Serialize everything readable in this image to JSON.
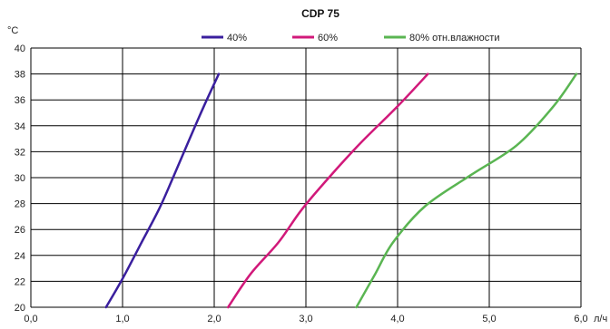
{
  "chart_data": {
    "type": "line",
    "title": "CDP 75",
    "ylabel": "°C",
    "x_axis_unit": "л/ч",
    "xlim": [
      0,
      6.0
    ],
    "ylim": [
      20,
      40
    ],
    "x_ticks": [
      "0,0",
      "1,0",
      "2,0",
      "3,0",
      "4,0",
      "5,0",
      "6,0"
    ],
    "y_ticks": [
      "20",
      "22",
      "24",
      "26",
      "28",
      "30",
      "32",
      "34",
      "36",
      "38",
      "40"
    ],
    "grid": true,
    "legend_position": "top",
    "series": [
      {
        "name": "40%",
        "color": "#3a1f9e",
        "points": [
          [
            0.82,
            20
          ],
          [
            1.0,
            22.2
          ],
          [
            1.2,
            24.9
          ],
          [
            1.4,
            27.6
          ],
          [
            1.55,
            30
          ],
          [
            1.72,
            32.8
          ],
          [
            1.88,
            35.4
          ],
          [
            2.05,
            38
          ]
        ]
      },
      {
        "name": "60%",
        "color": "#d1197a",
        "points": [
          [
            2.15,
            20
          ],
          [
            2.4,
            22.6
          ],
          [
            2.7,
            25
          ],
          [
            2.95,
            27.5
          ],
          [
            3.25,
            30
          ],
          [
            3.6,
            32.7
          ],
          [
            4.0,
            35.5
          ],
          [
            4.33,
            38
          ]
        ]
      },
      {
        "name": "80% отн.влажности",
        "color": "#5ab552",
        "points": [
          [
            3.55,
            20
          ],
          [
            3.75,
            22.5
          ],
          [
            3.95,
            25
          ],
          [
            4.3,
            27.8
          ],
          [
            4.8,
            30.2
          ],
          [
            5.3,
            32.5
          ],
          [
            5.7,
            35.5
          ],
          [
            5.95,
            38
          ]
        ]
      }
    ]
  }
}
